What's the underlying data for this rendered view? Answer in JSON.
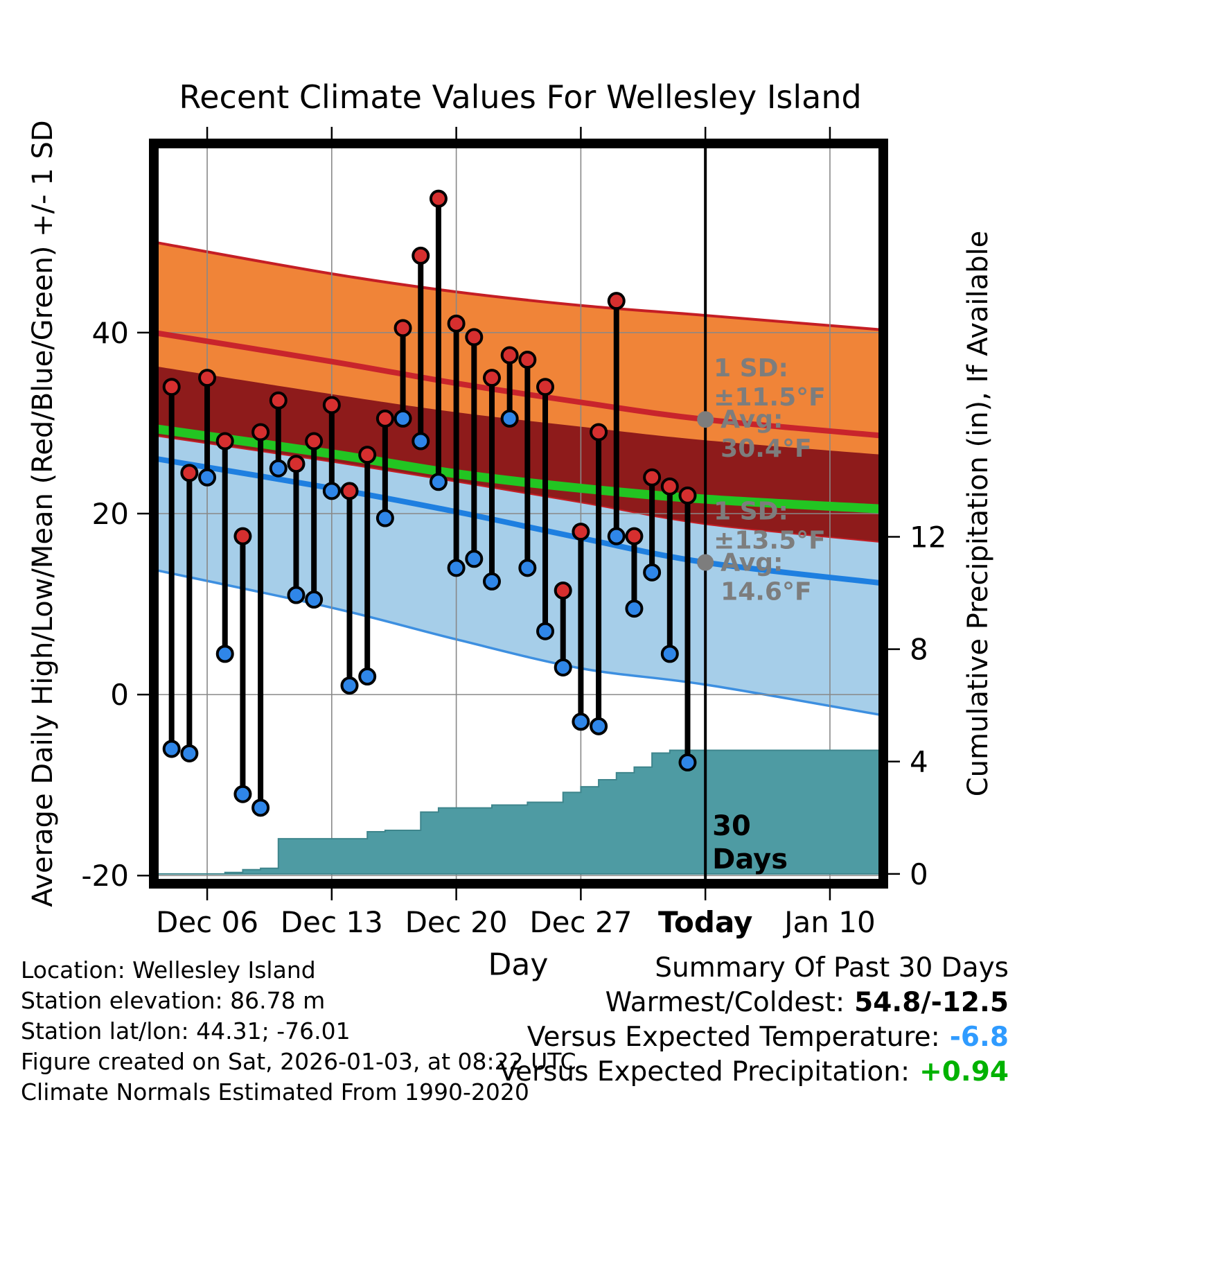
{
  "chart_data": {
    "type": "line",
    "title": "Recent Climate Values For Wellesley Island",
    "xlabel": "Day",
    "ylabel_left": "Average Daily High/Low/Mean (Red/Blue/Green) +/- 1 SD",
    "ylabel_right": "Cumulative Precipitation (in), If Available",
    "x_domain_days": [
      0,
      41
    ],
    "x_ticks": [
      {
        "day": 3,
        "label": "Dec 06"
      },
      {
        "day": 10,
        "label": "Dec 13"
      },
      {
        "day": 17,
        "label": "Dec 20"
      },
      {
        "day": 24,
        "label": "Dec 27"
      },
      {
        "day": 31,
        "label": "Today",
        "bold": true
      },
      {
        "day": 38,
        "label": "Jan 10"
      }
    ],
    "temp_ylim": [
      -20.9,
      60.9
    ],
    "temp_ticks": [
      -20,
      0,
      20,
      40
    ],
    "precip_ylim": [
      -0.35,
      26.0
    ],
    "precip_ticks": [
      0,
      4,
      8,
      12
    ],
    "climo_days": [
      0,
      10,
      17,
      24,
      31,
      41
    ],
    "climatology": {
      "high_plus_sd": [
        50.0,
        46.5,
        44.5,
        43.0,
        41.9,
        40.3
      ],
      "avg_high": [
        40.0,
        36.8,
        34.4,
        32.3,
        30.4,
        28.6
      ],
      "high_minus_sd": [
        28.7,
        25.8,
        23.6,
        21.3,
        18.9,
        16.9
      ],
      "low_plus_sd": [
        36.3,
        33.2,
        31.2,
        29.6,
        28.1,
        26.5
      ],
      "mean": [
        29.4,
        26.6,
        24.4,
        22.8,
        21.6,
        20.5
      ],
      "avg_low": [
        26.1,
        22.8,
        20.2,
        17.3,
        14.6,
        12.3
      ],
      "low_minus_sd": [
        13.8,
        9.6,
        6.1,
        2.9,
        1.1,
        -2.3
      ]
    },
    "observations": [
      {
        "day": 1,
        "high": 34.0,
        "low": -6.0
      },
      {
        "day": 2,
        "high": 24.5,
        "low": -6.5
      },
      {
        "day": 3,
        "high": 35.0,
        "low": 24.0
      },
      {
        "day": 4,
        "high": 28.0,
        "low": 4.5
      },
      {
        "day": 5,
        "high": 17.5,
        "low": -11.0
      },
      {
        "day": 6,
        "high": 29.0,
        "low": -12.5
      },
      {
        "day": 7,
        "high": 32.5,
        "low": 25.0
      },
      {
        "day": 8,
        "high": 25.5,
        "low": 11.0
      },
      {
        "day": 9,
        "high": 28.0,
        "low": 10.5
      },
      {
        "day": 10,
        "high": 32.0,
        "low": 22.5
      },
      {
        "day": 11,
        "high": 22.5,
        "low": 1.0
      },
      {
        "day": 12,
        "high": 26.5,
        "low": 2.0
      },
      {
        "day": 13,
        "high": 30.5,
        "low": 19.5
      },
      {
        "day": 14,
        "high": 40.5,
        "low": 30.5
      },
      {
        "day": 15,
        "high": 48.5,
        "low": 28.0
      },
      {
        "day": 16,
        "high": 54.8,
        "low": 23.5
      },
      {
        "day": 17,
        "high": 41.0,
        "low": 14.0
      },
      {
        "day": 18,
        "high": 39.5,
        "low": 15.0
      },
      {
        "day": 19,
        "high": 35.0,
        "low": 12.5
      },
      {
        "day": 20,
        "high": 37.5,
        "low": 30.5
      },
      {
        "day": 21,
        "high": 37.0,
        "low": 14.0
      },
      {
        "day": 22,
        "high": 34.0,
        "low": 7.0
      },
      {
        "day": 23,
        "high": 11.5,
        "low": 3.0
      },
      {
        "day": 24,
        "high": 18.0,
        "low": -3.0
      },
      {
        "day": 25,
        "high": 29.0,
        "low": -3.5
      },
      {
        "day": 26,
        "high": 43.5,
        "low": 17.5
      },
      {
        "day": 27,
        "high": 17.5,
        "low": 9.5
      },
      {
        "day": 28,
        "high": 24.0,
        "low": 13.5
      },
      {
        "day": 29,
        "high": 23.0,
        "low": 4.5
      },
      {
        "day": 30,
        "high": 22.0,
        "low": -7.5
      }
    ],
    "precip_steps": [
      [
        0,
        0
      ],
      [
        4,
        0.05
      ],
      [
        5,
        0.15
      ],
      [
        6,
        0.2
      ],
      [
        7,
        1.25
      ],
      [
        12,
        1.5
      ],
      [
        13,
        1.55
      ],
      [
        15,
        2.2
      ],
      [
        16,
        2.35
      ],
      [
        19,
        2.45
      ],
      [
        21,
        2.55
      ],
      [
        23,
        2.9
      ],
      [
        24,
        3.1
      ],
      [
        25,
        3.35
      ],
      [
        26,
        3.6
      ],
      [
        27,
        3.8
      ],
      [
        28,
        4.3
      ],
      [
        29,
        4.4
      ],
      [
        41,
        4.4
      ]
    ],
    "today_day": 31,
    "annotations": {
      "high": {
        "sd_label": "1 SD:",
        "sd_value": "±11.5°F",
        "avg_label": "Avg:",
        "avg_value": "30.4°F",
        "avg": 30.4
      },
      "low": {
        "sd_label": "1 SD:",
        "sd_value": "±13.5°F",
        "avg_label": "Avg:",
        "avg_value": "14.6°F",
        "avg": 14.6
      },
      "today_label": [
        "30",
        "Days"
      ]
    },
    "colors": {
      "band_high": "#F08438",
      "band_overlap": "#8E1B1B",
      "band_low": "#A6CEE9",
      "line_high": "#C8242C",
      "edge_high": "#C41E25",
      "line_low": "#1E7FE0",
      "edge_low": "#3D8FE0",
      "line_mean": "#22C522",
      "precip_fill": "#4E9BA3",
      "precip_edge": "#3E858C",
      "stem": "#000000",
      "marker_high": "#D62F2F",
      "marker_low": "#2F86E8",
      "annotation": "#7D7D7D",
      "grid": "#888888",
      "frame": "#000000"
    }
  },
  "footer_left": {
    "lines": [
      "Location: Wellesley Island",
      "Station elevation: 86.78 m",
      "Station lat/lon: 44.31; -76.01",
      "Figure created on Sat, 2026-01-03, at 08:22 UTC",
      "Climate Normals Estimated From 1990-2020"
    ]
  },
  "summary": {
    "title": "Summary Of Past 30 Days",
    "warmest_label": "Warmest/Coldest:",
    "warmest_value": "54.8/-12.5",
    "temp_label": "Versus Expected Temperature:",
    "temp_value": "-6.8",
    "temp_color": "#2F9BFF",
    "precip_label": "Versus Expected Precipitation:",
    "precip_value": "+0.94",
    "precip_color": "#00B200"
  }
}
